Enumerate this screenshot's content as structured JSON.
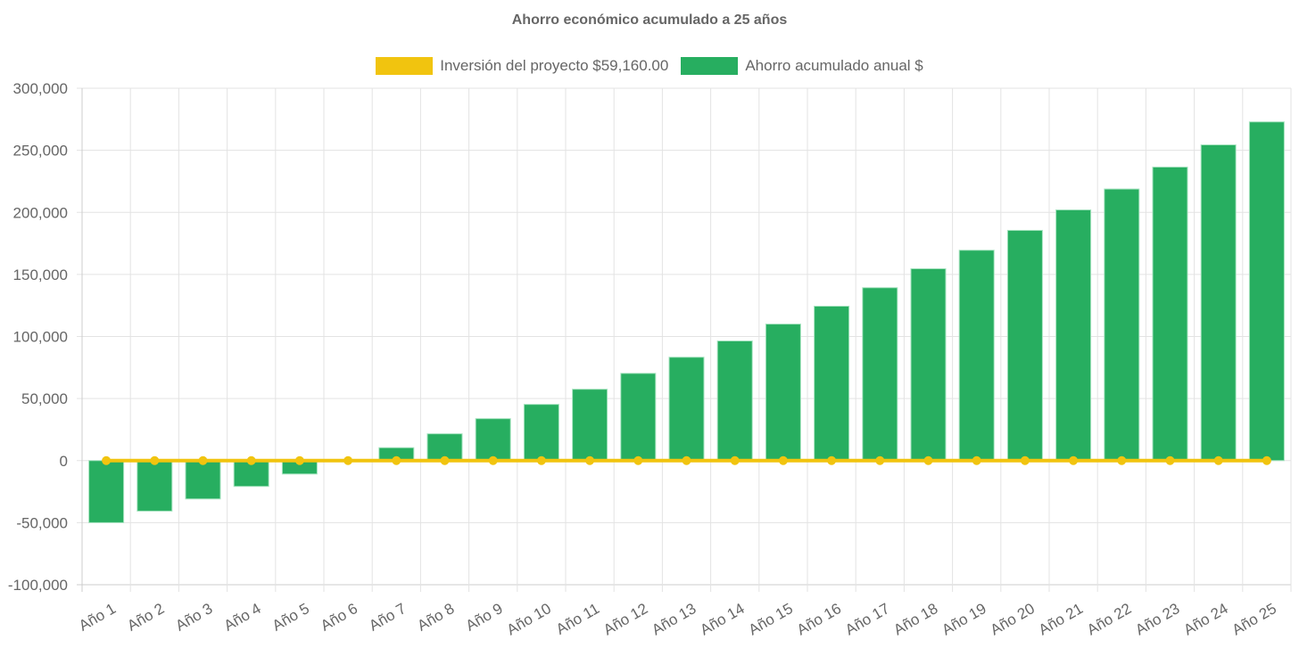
{
  "chart_data": {
    "type": "bar",
    "title": "Ahorro económico acumulado a 25 años",
    "categories": [
      "Año 1",
      "Año 2",
      "Año 3",
      "Año 4",
      "Año 5",
      "Año 6",
      "Año 7",
      "Año 8",
      "Año 9",
      "Año 10",
      "Año 11",
      "Año 12",
      "Año 13",
      "Año 14",
      "Año 15",
      "Año 16",
      "Año 17",
      "Año 18",
      "Año 19",
      "Año 20",
      "Año 21",
      "Año 22",
      "Año 23",
      "Año 24",
      "Año 25"
    ],
    "series": [
      {
        "name": "Inversión del proyecto $59,160.00",
        "type": "line",
        "color": "#f1c40f",
        "values": [
          0,
          0,
          0,
          0,
          0,
          0,
          0,
          0,
          0,
          0,
          0,
          0,
          0,
          0,
          0,
          0,
          0,
          0,
          0,
          0,
          0,
          0,
          0,
          0,
          0
        ]
      },
      {
        "name": "Ahorro acumulado anual $",
        "type": "bar",
        "color": "#27ae60",
        "values": [
          -50000,
          -40700,
          -30900,
          -20800,
          -10800,
          0,
          10400,
          21600,
          33800,
          45300,
          57500,
          70300,
          83300,
          96400,
          110000,
          124400,
          139300,
          154600,
          169500,
          185500,
          202000,
          218800,
          236500,
          254400,
          272900
        ]
      }
    ],
    "ylim": [
      -100000,
      300000
    ],
    "yticks": [
      -100000,
      -50000,
      0,
      50000,
      100000,
      150000,
      200000,
      250000,
      300000
    ],
    "ytick_labels": [
      "-100,000",
      "-50,000",
      "0",
      "50,000",
      "100,000",
      "150,000",
      "200,000",
      "250,000",
      "300,000"
    ],
    "grid": true,
    "legend": "top"
  }
}
